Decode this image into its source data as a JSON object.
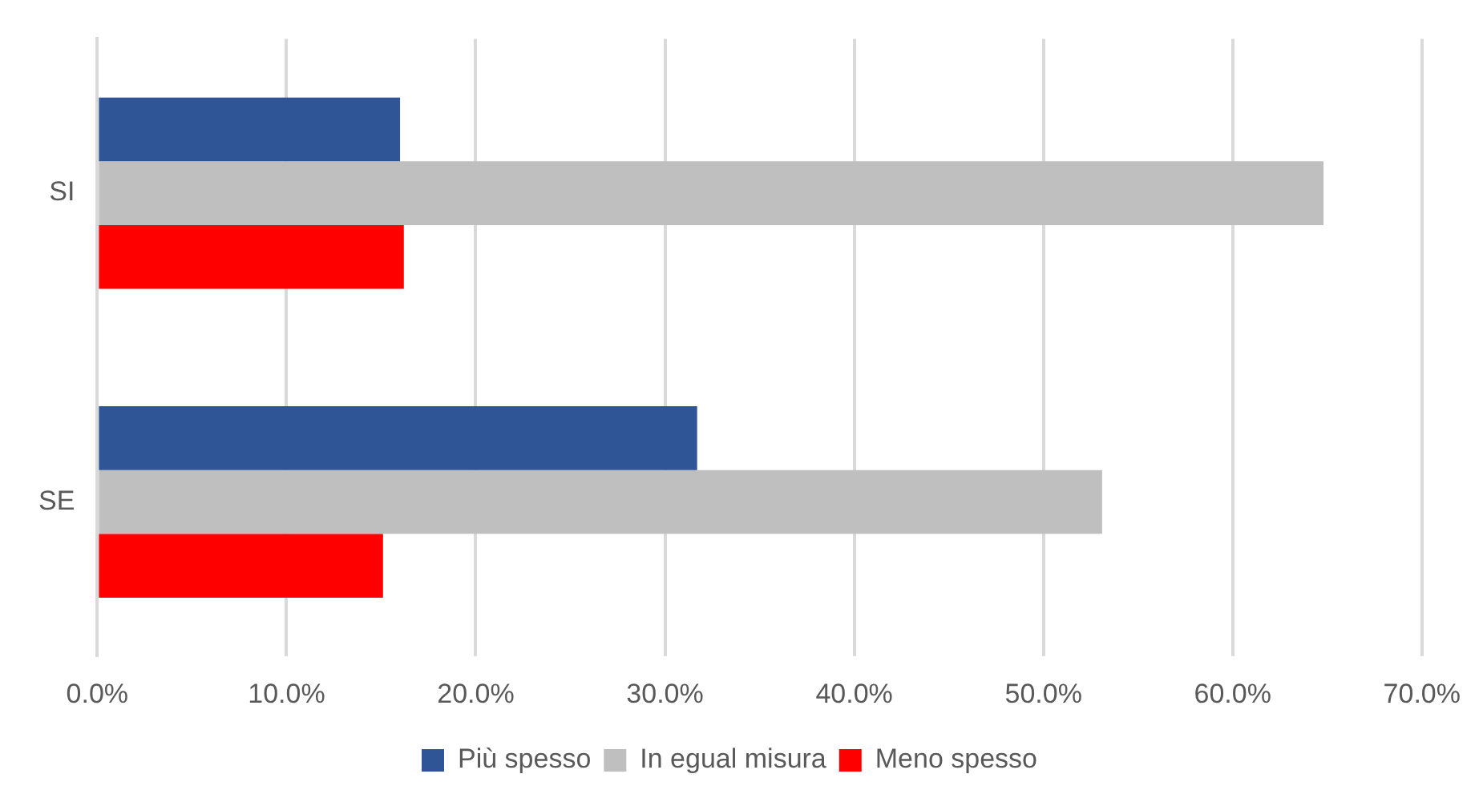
{
  "chart_data": {
    "type": "bar",
    "orientation": "horizontal",
    "categories": [
      "SI",
      "SE"
    ],
    "series": [
      {
        "name": "Più spesso",
        "color": "#2f5597",
        "values": [
          16.0,
          31.7
        ]
      },
      {
        "name": "In egual misura",
        "color": "#bfbfbf",
        "values": [
          64.8,
          53.1
        ]
      },
      {
        "name": "Meno spesso",
        "color": "#ff0000",
        "values": [
          16.2,
          15.1
        ]
      }
    ],
    "xlim": [
      0,
      70
    ],
    "xticks": [
      {
        "value": 0,
        "label": "0.0%"
      },
      {
        "value": 10,
        "label": "10.0%"
      },
      {
        "value": 20,
        "label": "20.0%"
      },
      {
        "value": 30,
        "label": "30.0%"
      },
      {
        "value": 40,
        "label": "40.0%"
      },
      {
        "value": 50,
        "label": "50.0%"
      },
      {
        "value": 60,
        "label": "60.0%"
      },
      {
        "value": 70,
        "label": "70.0%"
      }
    ],
    "grid": "x",
    "legend": "bottom"
  }
}
